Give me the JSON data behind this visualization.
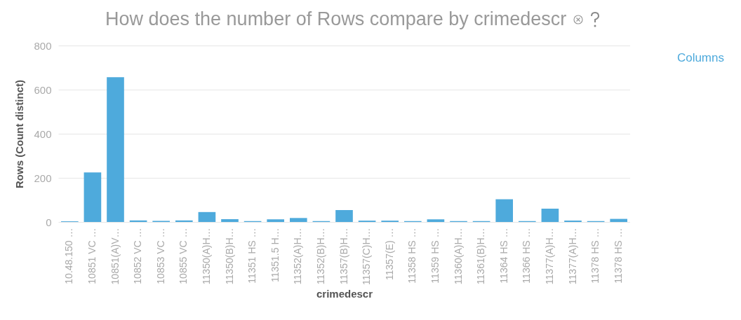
{
  "chart_data": {
    "type": "bar",
    "title": "How does the number of Rows compare by crimedescr",
    "xlabel": "crimedescr",
    "ylabel": "Rows (Count distinct)",
    "categories": [
      "10.48.150 …",
      "10851 VC …",
      "10851(A)V…",
      "10852 VC …",
      "10853 VC …",
      "10855 VC …",
      "11350(A)H…",
      "11350(B)H…",
      "11351 HS …",
      "11351.5 H…",
      "11352(A)H…",
      "11352(B)H…",
      "11357(B)H…",
      "11357(C)H…",
      "11357(E) …",
      "11358 HS …",
      "11359 HS …",
      "11360(A)H…",
      "11361(B)H…",
      "11364 HS …",
      "11366 HS …",
      "11377(A)H…",
      "11377(A)H…",
      "11378 HS …",
      "11378 HS …"
    ],
    "values": [
      3,
      225,
      656,
      7,
      5,
      7,
      45,
      13,
      4,
      12,
      18,
      4,
      54,
      6,
      6,
      4,
      12,
      4,
      4,
      103,
      4,
      60,
      6,
      4,
      14
    ],
    "color": "#4eaadc",
    "ylim": [
      0,
      800
    ],
    "yticks": [
      0,
      200,
      400,
      600,
      800
    ],
    "grid": "y",
    "annotations": [
      "Columns"
    ]
  }
}
